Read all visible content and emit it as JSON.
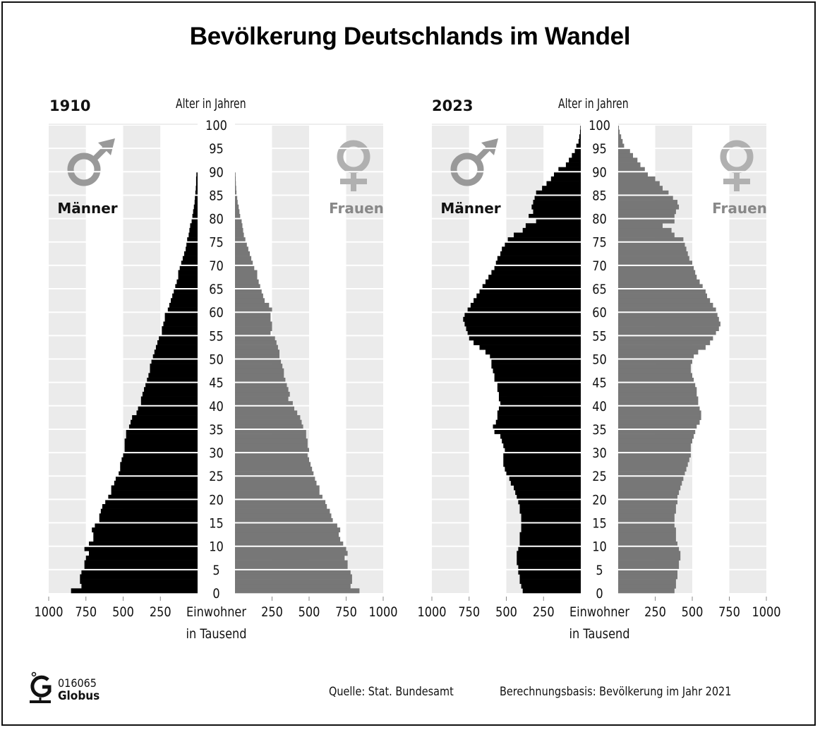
{
  "title": "Bevölkerung Deutschlands im Wandel",
  "footer": {
    "logo_code": "016065",
    "logo_name": "Globus",
    "source": "Quelle: Stat. Bundesamt",
    "basis": "Berechnungsbasis: Bevölkerung im Jahr 2021"
  },
  "colors": {
    "male": "#000000",
    "female": "#777777",
    "symbol": "#999999",
    "symbol_female": "#b0b0b0",
    "band": "#ebebeb"
  },
  "chart_data": [
    {
      "type": "bar",
      "subtype": "population-pyramid",
      "title": "1910",
      "ylabel": "Alter in Jahren",
      "xlabel": "Einwohner in Tausend",
      "x_ticks": [
        1000,
        750,
        500,
        250,
        250,
        500,
        750,
        1000
      ],
      "xlim": [
        0,
        1000
      ],
      "y_ticks": [
        0,
        5,
        10,
        15,
        20,
        25,
        30,
        35,
        40,
        45,
        50,
        55,
        60,
        65,
        70,
        75,
        80,
        85,
        90,
        95,
        100
      ],
      "ylim": [
        0,
        100
      ],
      "legend": [
        "Männer",
        "Frauen"
      ],
      "ages": [
        0,
        1,
        2,
        3,
        4,
        5,
        6,
        7,
        8,
        9,
        10,
        11,
        12,
        13,
        14,
        15,
        16,
        17,
        18,
        19,
        20,
        21,
        22,
        23,
        24,
        25,
        26,
        27,
        28,
        29,
        30,
        31,
        32,
        33,
        34,
        35,
        36,
        37,
        38,
        39,
        40,
        41,
        42,
        43,
        44,
        45,
        46,
        47,
        48,
        49,
        50,
        51,
        52,
        53,
        54,
        55,
        56,
        57,
        58,
        59,
        60,
        61,
        62,
        63,
        64,
        65,
        66,
        67,
        68,
        69,
        70,
        71,
        72,
        73,
        74,
        75,
        76,
        77,
        78,
        79,
        80,
        81,
        82,
        83,
        84,
        85,
        86,
        87,
        88,
        89
      ],
      "series": [
        {
          "name": "Männer",
          "values": [
            850,
            780,
            790,
            790,
            780,
            760,
            760,
            750,
            730,
            760,
            730,
            700,
            700,
            710,
            690,
            660,
            660,
            650,
            640,
            620,
            600,
            580,
            580,
            560,
            550,
            530,
            520,
            520,
            510,
            500,
            490,
            490,
            490,
            480,
            480,
            460,
            450,
            440,
            410,
            400,
            380,
            380,
            370,
            360,
            350,
            340,
            330,
            320,
            320,
            310,
            300,
            290,
            280,
            270,
            260,
            240,
            240,
            230,
            220,
            220,
            200,
            190,
            180,
            170,
            160,
            150,
            140,
            130,
            130,
            120,
            110,
            100,
            90,
            80,
            75,
            70,
            60,
            55,
            50,
            40,
            35,
            30,
            25,
            20,
            18,
            15,
            12,
            10,
            10,
            8
          ]
        },
        {
          "name": "Frauen",
          "values": [
            840,
            780,
            790,
            790,
            780,
            760,
            760,
            740,
            760,
            750,
            730,
            710,
            700,
            710,
            690,
            660,
            650,
            640,
            620,
            610,
            590,
            570,
            570,
            550,
            540,
            530,
            520,
            510,
            500,
            490,
            500,
            490,
            490,
            480,
            480,
            460,
            450,
            440,
            420,
            400,
            390,
            360,
            370,
            360,
            350,
            340,
            330,
            330,
            320,
            310,
            300,
            300,
            290,
            280,
            270,
            240,
            250,
            250,
            240,
            240,
            250,
            230,
            200,
            190,
            180,
            170,
            160,
            150,
            150,
            130,
            120,
            110,
            100,
            90,
            80,
            70,
            60,
            55,
            50,
            45,
            35,
            30,
            25,
            18,
            15,
            10,
            8,
            6,
            5,
            4
          ]
        }
      ]
    },
    {
      "type": "bar",
      "subtype": "population-pyramid",
      "title": "2023",
      "ylabel": "Alter in Jahren",
      "xlabel": "Einwohner in Tausend",
      "x_ticks": [
        1000,
        750,
        500,
        250,
        250,
        500,
        750,
        1000
      ],
      "xlim": [
        0,
        1000
      ],
      "y_ticks": [
        0,
        5,
        10,
        15,
        20,
        25,
        30,
        35,
        40,
        45,
        50,
        55,
        60,
        65,
        70,
        75,
        80,
        85,
        90,
        95,
        100
      ],
      "ylim": [
        0,
        100
      ],
      "legend": [
        "Männer",
        "Frauen"
      ],
      "ages": [
        0,
        1,
        2,
        3,
        4,
        5,
        6,
        7,
        8,
        9,
        10,
        11,
        12,
        13,
        14,
        15,
        16,
        17,
        18,
        19,
        20,
        21,
        22,
        23,
        24,
        25,
        26,
        27,
        28,
        29,
        30,
        31,
        32,
        33,
        34,
        35,
        36,
        37,
        38,
        39,
        40,
        41,
        42,
        43,
        44,
        45,
        46,
        47,
        48,
        49,
        50,
        51,
        52,
        53,
        54,
        55,
        56,
        57,
        58,
        59,
        60,
        61,
        62,
        63,
        64,
        65,
        66,
        67,
        68,
        69,
        70,
        71,
        72,
        73,
        74,
        75,
        76,
        77,
        78,
        79,
        80,
        81,
        82,
        83,
        84,
        85,
        86,
        87,
        88,
        89,
        90,
        91,
        92,
        93,
        94,
        95,
        96,
        97,
        98,
        99
      ],
      "series": [
        {
          "name": "Männer",
          "values": [
            390,
            400,
            410,
            410,
            420,
            420,
            430,
            430,
            430,
            420,
            410,
            410,
            410,
            400,
            400,
            400,
            400,
            410,
            410,
            420,
            430,
            440,
            450,
            470,
            480,
            500,
            510,
            520,
            520,
            520,
            510,
            520,
            530,
            540,
            580,
            590,
            570,
            560,
            560,
            550,
            540,
            550,
            550,
            560,
            560,
            580,
            580,
            590,
            600,
            600,
            610,
            640,
            680,
            720,
            750,
            760,
            770,
            780,
            790,
            780,
            760,
            740,
            720,
            700,
            680,
            660,
            640,
            620,
            600,
            580,
            570,
            560,
            540,
            530,
            510,
            490,
            450,
            390,
            370,
            300,
            350,
            320,
            330,
            320,
            310,
            300,
            260,
            230,
            200,
            180,
            150,
            100,
            80,
            60,
            40,
            30,
            15,
            10,
            5,
            3
          ]
        },
        {
          "name": "Frauen",
          "values": [
            380,
            390,
            390,
            400,
            400,
            410,
            410,
            420,
            420,
            410,
            400,
            390,
            390,
            390,
            380,
            380,
            380,
            390,
            390,
            400,
            400,
            410,
            420,
            430,
            440,
            450,
            460,
            470,
            480,
            490,
            490,
            490,
            500,
            510,
            520,
            530,
            550,
            560,
            560,
            550,
            540,
            540,
            530,
            530,
            520,
            510,
            500,
            490,
            490,
            500,
            510,
            540,
            590,
            620,
            640,
            660,
            680,
            690,
            680,
            670,
            660,
            640,
            620,
            600,
            590,
            570,
            550,
            530,
            520,
            510,
            500,
            480,
            470,
            460,
            450,
            440,
            380,
            360,
            300,
            380,
            380,
            390,
            410,
            400,
            370,
            340,
            300,
            280,
            250,
            200,
            180,
            150,
            130,
            100,
            80,
            40,
            30,
            20,
            10,
            5
          ]
        }
      ]
    }
  ],
  "panels": [
    {
      "year": "1910",
      "age_label": "Alter in Jahren",
      "male_label": "Männer",
      "female_label": "Frauen",
      "axis_unit_1": "Einwohner",
      "axis_unit_2": "in Tausend"
    },
    {
      "year": "2023",
      "age_label": "Alter in Jahren",
      "male_label": "Männer",
      "female_label": "Frauen",
      "axis_unit_1": "Einwohner",
      "axis_unit_2": "in Tausend"
    }
  ]
}
